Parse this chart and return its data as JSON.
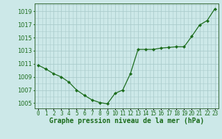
{
  "x": [
    0,
    1,
    2,
    3,
    4,
    5,
    6,
    7,
    8,
    9,
    10,
    11,
    12,
    13,
    14,
    15,
    16,
    17,
    18,
    19,
    20,
    21,
    22,
    23
  ],
  "y": [
    1010.8,
    1010.2,
    1009.5,
    1009.0,
    1008.2,
    1007.0,
    1006.2,
    1005.5,
    1005.1,
    1004.9,
    1006.5,
    1007.0,
    1009.5,
    1013.2,
    1013.2,
    1013.2,
    1013.4,
    1013.5,
    1013.6,
    1013.6,
    1015.2,
    1016.9,
    1017.6,
    1019.4
  ],
  "line_color": "#1a6b1a",
  "marker": "D",
  "marker_size": 2.2,
  "bg_color": "#cce8e8",
  "grid_color": "#aacccc",
  "axis_color": "#336633",
  "ylabel_ticks": [
    1005,
    1007,
    1009,
    1011,
    1013,
    1015,
    1017,
    1019
  ],
  "xlabel": "Graphe pression niveau de la mer (hPa)",
  "xlim": [
    -0.5,
    23.5
  ],
  "ylim": [
    1004.2,
    1020.2
  ],
  "xtick_labels": [
    "0",
    "1",
    "2",
    "3",
    "4",
    "5",
    "6",
    "7",
    "8",
    "9",
    "10",
    "11",
    "12",
    "13",
    "14",
    "15",
    "16",
    "17",
    "18",
    "19",
    "20",
    "21",
    "22",
    "23"
  ],
  "xlabel_fontsize": 7.0,
  "ytick_fontsize": 6.0,
  "xtick_fontsize": 5.5,
  "xlabel_color": "#1a6b1a",
  "tick_color": "#1a6b1a"
}
